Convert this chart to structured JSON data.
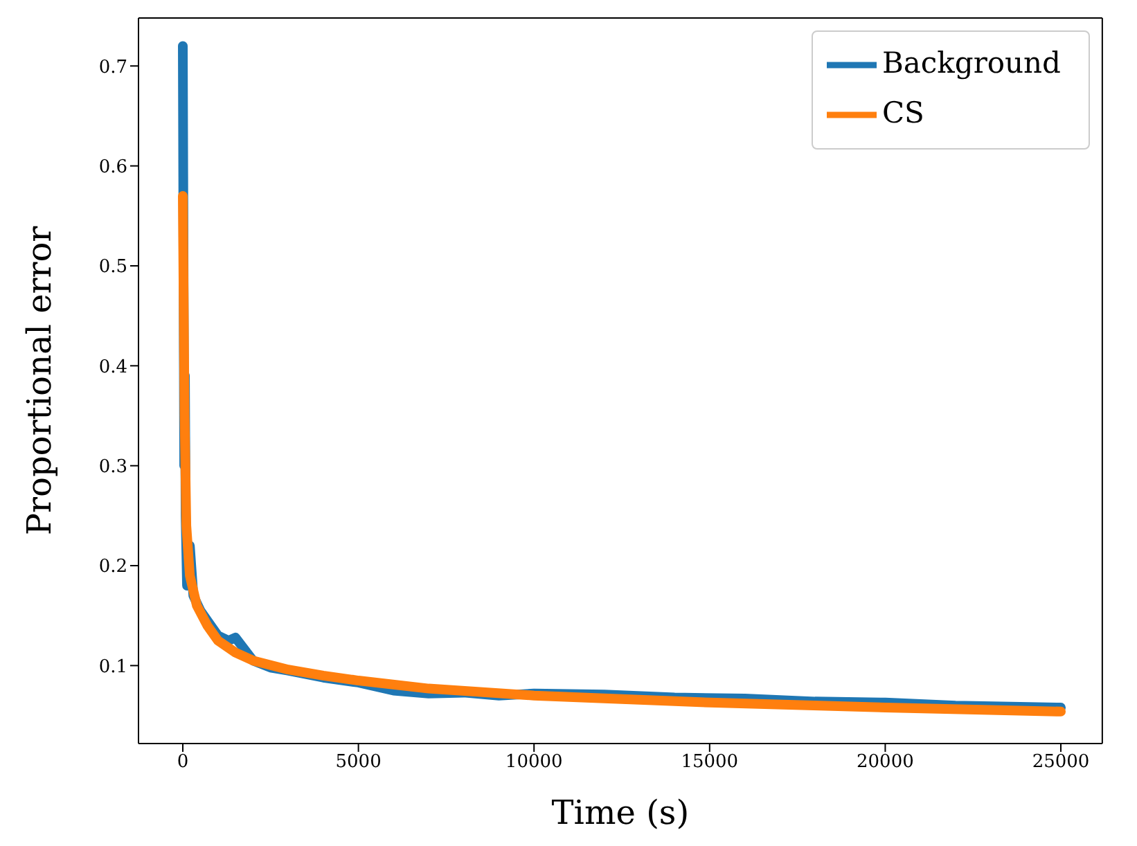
{
  "chart_data": {
    "type": "line",
    "xlabel": "Time (s)",
    "ylabel": "Proportional error",
    "xlim": [
      -1262,
      26180
    ],
    "ylim": [
      0.022,
      0.748
    ],
    "xticks": [
      0,
      5000,
      10000,
      15000,
      20000,
      25000
    ],
    "yticks": [
      0.1,
      0.2,
      0.3,
      0.4,
      0.5,
      0.6,
      0.7
    ],
    "grid": false,
    "legend": "top right",
    "marker": "none",
    "line_style": "solid",
    "series": [
      {
        "name": "Background",
        "color": "#1f77b4",
        "x": [
          0,
          40,
          60,
          80,
          120,
          200,
          300,
          500,
          800,
          1000,
          1300,
          1500,
          2000,
          2500,
          3000,
          4000,
          5000,
          6000,
          7000,
          8000,
          9000,
          10000,
          12000,
          14000,
          16000,
          18000,
          20000,
          22000,
          25000
        ],
        "values": [
          0.72,
          0.3,
          0.39,
          0.25,
          0.18,
          0.22,
          0.17,
          0.155,
          0.14,
          0.13,
          0.125,
          0.128,
          0.105,
          0.098,
          0.095,
          0.088,
          0.083,
          0.075,
          0.072,
          0.073,
          0.07,
          0.072,
          0.071,
          0.068,
          0.067,
          0.064,
          0.063,
          0.06,
          0.058
        ]
      },
      {
        "name": "CS",
        "color": "#ff7f0e",
        "x": [
          0,
          50,
          100,
          200,
          400,
          700,
          1000,
          1500,
          2000,
          3000,
          4000,
          5000,
          7000,
          10000,
          15000,
          20000,
          25000
        ],
        "values": [
          0.57,
          0.35,
          0.24,
          0.19,
          0.16,
          0.14,
          0.125,
          0.113,
          0.105,
          0.096,
          0.09,
          0.085,
          0.077,
          0.07,
          0.063,
          0.058,
          0.054
        ]
      }
    ]
  }
}
